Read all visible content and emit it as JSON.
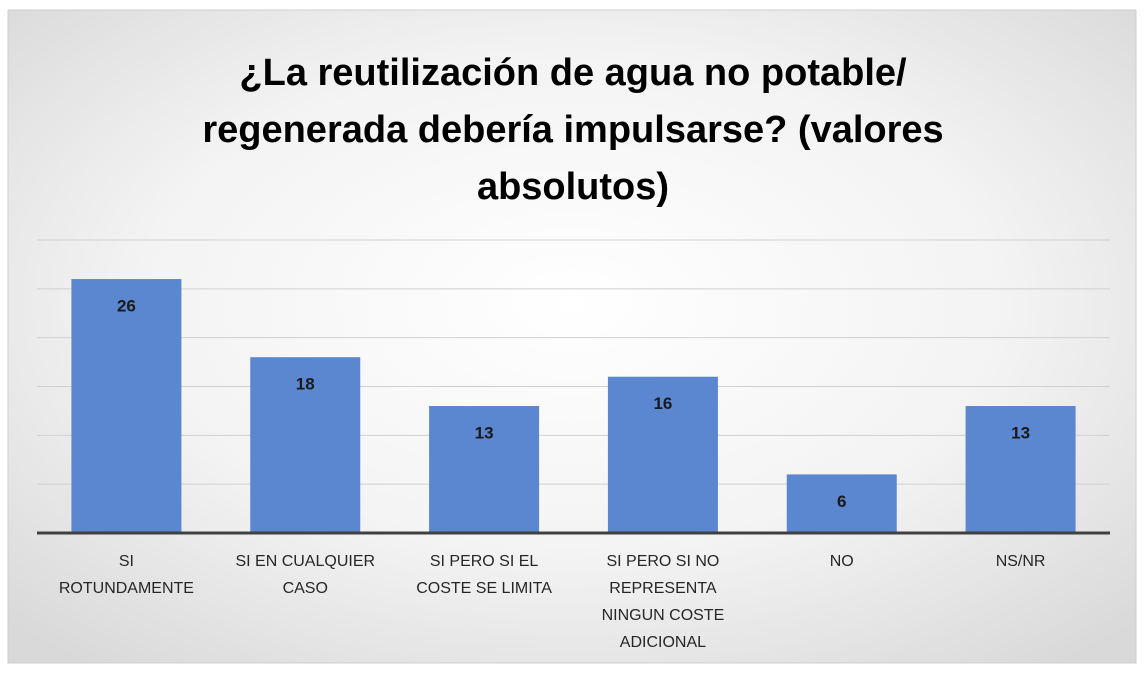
{
  "chart_data": {
    "type": "bar",
    "title": "¿La reutilización de agua no potable/\nregenerada debería impulsarse? (valores\nabsolutos)",
    "categories": [
      "SI\nROTUNDAMENTE",
      "SI EN CUALQUIER\nCASO",
      "SI PERO SI EL\nCOSTE SE LIMITA",
      "SI PERO SI NO\nREPRESENTA\nNINGUN COSTE\nADICIONAL",
      "NO",
      "NS/NR"
    ],
    "values": [
      26,
      18,
      13,
      16,
      6,
      13
    ],
    "color": "#5b86d0",
    "ylim": [
      0,
      30
    ],
    "yticks": [
      0,
      5,
      10,
      15,
      20,
      25,
      30
    ],
    "grid": true
  }
}
